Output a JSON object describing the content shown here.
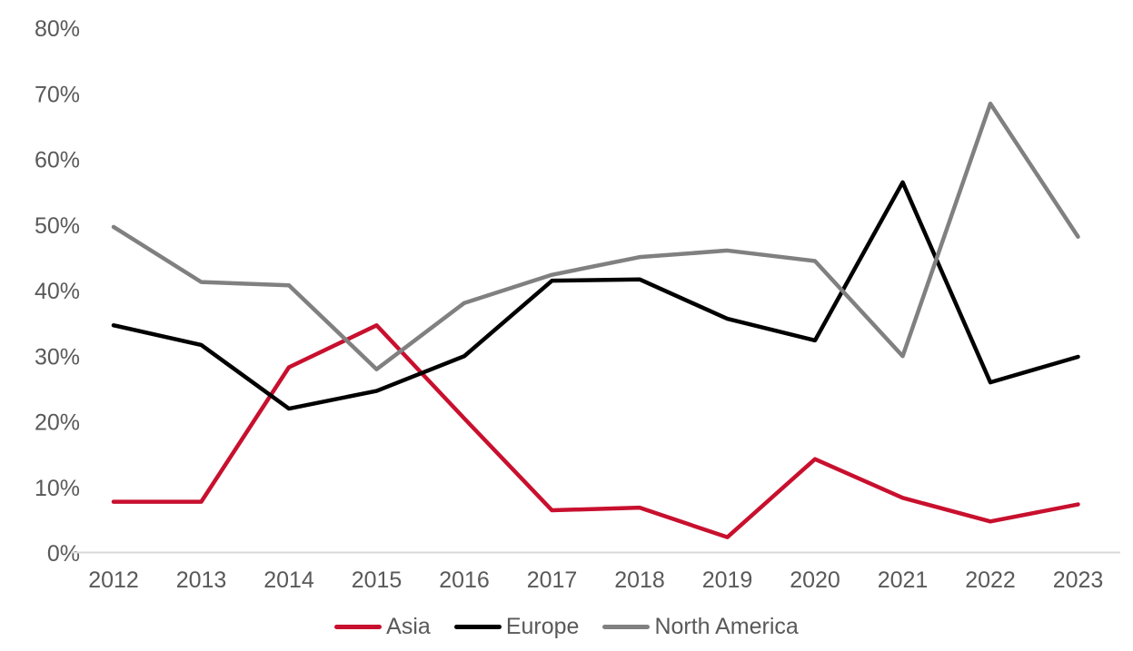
{
  "chart_data": {
    "type": "line",
    "title": "",
    "xlabel": "",
    "ylabel": "",
    "x": [
      2012,
      2013,
      2014,
      2015,
      2016,
      2017,
      2018,
      2019,
      2020,
      2021,
      2022,
      2023
    ],
    "series": [
      {
        "name": "Asia",
        "color": "#C8102E",
        "values": [
          7.8,
          7.8,
          28.3,
          34.7,
          20.5,
          6.5,
          6.9,
          2.4,
          14.3,
          8.4,
          4.8,
          7.4
        ]
      },
      {
        "name": "Europe",
        "color": "#000000",
        "values": [
          34.7,
          31.7,
          22.0,
          24.7,
          30.0,
          41.5,
          41.7,
          35.7,
          32.4,
          56.5,
          26.0,
          29.9
        ]
      },
      {
        "name": "North America",
        "color": "#808080",
        "values": [
          49.7,
          41.3,
          40.8,
          28.0,
          38.1,
          42.4,
          45.1,
          46.1,
          44.5,
          30.0,
          68.5,
          48.2
        ]
      }
    ],
    "ylim": [
      0,
      80
    ],
    "yticks": [
      {
        "value": 0,
        "label": "0%"
      },
      {
        "value": 10,
        "label": "10%"
      },
      {
        "value": 20,
        "label": "20%"
      },
      {
        "value": 30,
        "label": "30%"
      },
      {
        "value": 40,
        "label": "40%"
      },
      {
        "value": 50,
        "label": "50%"
      },
      {
        "value": 60,
        "label": "60%"
      },
      {
        "value": 70,
        "label": "70%"
      },
      {
        "value": 80,
        "label": "80%"
      }
    ],
    "grid": "off",
    "baseline_color": "#D9D9D9",
    "tick_label_color": "#595959",
    "legend_position": "bottom-center",
    "legend_entries": [
      "Asia",
      "Europe",
      "North America"
    ]
  }
}
